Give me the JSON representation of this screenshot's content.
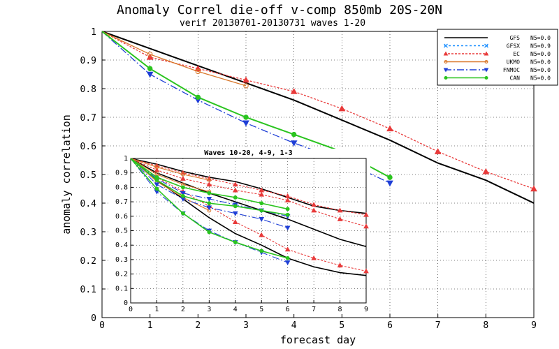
{
  "chart_data": [
    {
      "type": "line",
      "title": "Anomaly Correl die-off  v-comp 850mb 20S-20N",
      "subtitle": "verif 20130701-20130731 waves 1-20",
      "xlabel": "forecast day",
      "ylabel": "anomaly correlation",
      "xlim": [
        0,
        9
      ],
      "ylim": [
        0,
        1
      ],
      "x_ticks": [
        "0",
        "1",
        "2",
        "3",
        "4",
        "5",
        "6",
        "7",
        "8",
        "9"
      ],
      "y_ticks": [
        "0",
        "0.1",
        "0.2",
        "0.3",
        "0.4",
        "0.5",
        "0.6",
        "0.7",
        "0.8",
        "0.9",
        "1"
      ],
      "grid": true,
      "legend_position": "top-right",
      "series": [
        {
          "name": "GFS",
          "n_label": "N5=0.0",
          "color": "#000000",
          "dash": "",
          "marker": "none",
          "x": [
            0,
            1,
            2,
            3,
            4,
            5,
            6,
            7,
            8,
            9
          ],
          "y": [
            1,
            0.94,
            0.88,
            0.82,
            0.76,
            0.69,
            0.62,
            0.54,
            0.48,
            0.4
          ]
        },
        {
          "name": "GFSX",
          "n_label": "N5=0.9",
          "color": "#1e90ff",
          "dash": "3,3",
          "marker": "x",
          "x": [
            0
          ],
          "y": [
            1
          ]
        },
        {
          "name": "EC",
          "n_label": "N5=0.0",
          "color": "#e83a3a",
          "dash": "3,2",
          "marker": "triangle",
          "x": [
            0,
            1,
            2,
            3,
            4,
            5,
            6,
            7,
            8,
            9
          ],
          "y": [
            1,
            0.91,
            0.87,
            0.83,
            0.79,
            0.73,
            0.66,
            0.58,
            0.51,
            0.45
          ]
        },
        {
          "name": "UKMO",
          "n_label": "N5=0.0",
          "color": "#d9772a",
          "dash": "",
          "marker": "circle",
          "x": [
            0,
            1,
            2,
            3
          ],
          "y": [
            1,
            0.92,
            0.86,
            0.81
          ]
        },
        {
          "name": "FNMOC",
          "n_label": "N5=0.0",
          "color": "#1f3fd6",
          "dash": "10,3,2,3",
          "marker": "tri-down",
          "x": [
            0,
            1,
            2,
            3,
            4,
            5,
            6
          ],
          "y": [
            1,
            0.85,
            0.76,
            0.68,
            0.61,
            0.55,
            0.47
          ]
        },
        {
          "name": "CAN",
          "n_label": "N5=0.0",
          "color": "#2ac41f",
          "dash": "",
          "marker": "dot",
          "x": [
            0,
            1,
            2,
            3,
            4,
            5,
            6
          ],
          "y": [
            1,
            0.87,
            0.77,
            0.7,
            0.64,
            0.58,
            0.49
          ]
        }
      ]
    },
    {
      "type": "line",
      "title": "Waves 10-20, 4-9, 1-3",
      "xlim": [
        0,
        9
      ],
      "ylim": [
        0,
        1
      ],
      "x_ticks": [
        "0",
        "1",
        "2",
        "3",
        "4",
        "5",
        "6",
        "7",
        "8",
        "9"
      ],
      "y_ticks": [
        "0",
        "0.1",
        "0.2",
        "0.3",
        "0.4",
        "0.5",
        "0.6",
        "0.7",
        "0.8",
        "0.9",
        "1"
      ],
      "grid": true,
      "series": [
        {
          "name": "GFS waves 1-3",
          "color": "#000000",
          "dash": "",
          "marker": "none",
          "x": [
            0,
            1,
            2,
            3,
            4,
            5,
            6,
            7,
            8,
            9
          ],
          "y": [
            1,
            0.96,
            0.91,
            0.87,
            0.84,
            0.79,
            0.73,
            0.67,
            0.64,
            0.62
          ]
        },
        {
          "name": "GFS waves 4-9",
          "color": "#000000",
          "dash": "",
          "marker": "none",
          "x": [
            0,
            1,
            2,
            3,
            4,
            5,
            6,
            7,
            8,
            9
          ],
          "y": [
            1,
            0.9,
            0.83,
            0.76,
            0.7,
            0.64,
            0.58,
            0.51,
            0.44,
            0.39
          ]
        },
        {
          "name": "GFS waves 10-20",
          "color": "#000000",
          "dash": "",
          "marker": "none",
          "x": [
            0,
            1,
            2,
            3,
            4,
            5,
            6,
            7,
            8,
            9
          ],
          "y": [
            1,
            0.85,
            0.72,
            0.59,
            0.48,
            0.4,
            0.31,
            0.25,
            0.21,
            0.19
          ]
        },
        {
          "name": "EC waves 1-3",
          "color": "#e83a3a",
          "dash": "3,2",
          "marker": "triangle",
          "x": [
            0,
            1,
            2,
            3,
            4,
            5,
            6,
            7,
            8,
            9
          ],
          "y": [
            1,
            0.95,
            0.9,
            0.86,
            0.82,
            0.78,
            0.74,
            0.68,
            0.64,
            0.61
          ]
        },
        {
          "name": "EC waves 4-9",
          "color": "#e83a3a",
          "dash": "3,2",
          "marker": "triangle",
          "x": [
            0,
            1,
            2,
            3,
            4,
            5,
            6,
            7,
            8,
            9
          ],
          "y": [
            1,
            0.92,
            0.86,
            0.82,
            0.78,
            0.75,
            0.71,
            0.64,
            0.58,
            0.53
          ]
        },
        {
          "name": "EC waves 10-20",
          "color": "#e83a3a",
          "dash": "3,2",
          "marker": "triangle",
          "x": [
            0,
            1,
            2,
            3,
            4,
            5,
            6,
            7,
            8,
            9
          ],
          "y": [
            1,
            0.87,
            0.77,
            0.67,
            0.56,
            0.47,
            0.37,
            0.31,
            0.26,
            0.22
          ]
        },
        {
          "name": "UKMO waves 1-3",
          "color": "#d9772a",
          "dash": "",
          "marker": "circle",
          "x": [
            0,
            1,
            2,
            3
          ],
          "y": [
            1,
            0.94,
            0.89,
            0.85
          ]
        },
        {
          "name": "UKMO waves 4-9",
          "color": "#d9772a",
          "dash": "",
          "marker": "circle",
          "x": [
            0,
            1,
            2,
            3
          ],
          "y": [
            1,
            0.89,
            0.82,
            0.77
          ]
        },
        {
          "name": "UKMO waves 10-20",
          "color": "#d9772a",
          "dash": "",
          "marker": "circle",
          "x": [
            0,
            1,
            2,
            3
          ],
          "y": [
            1,
            0.84,
            0.73,
            0.64
          ]
        },
        {
          "name": "FNMOC waves 1-3",
          "color": "#1f3fd6",
          "dash": "10,3,2,3",
          "marker": "tri-down",
          "x": [
            0,
            1,
            2,
            3,
            4,
            5,
            6
          ],
          "y": [
            1,
            0.86,
            0.76,
            0.72,
            0.68,
            0.64,
            0.6
          ]
        },
        {
          "name": "FNMOC waves 4-9",
          "color": "#1f3fd6",
          "dash": "10,3,2,3",
          "marker": "tri-down",
          "x": [
            0,
            1,
            2,
            3,
            4,
            5,
            6
          ],
          "y": [
            1,
            0.82,
            0.72,
            0.66,
            0.62,
            0.58,
            0.52
          ]
        },
        {
          "name": "FNMOC waves 10-20",
          "color": "#1f3fd6",
          "dash": "10,3,2,3",
          "marker": "tri-down",
          "x": [
            0,
            1,
            2,
            3,
            4,
            5,
            6
          ],
          "y": [
            1,
            0.77,
            0.62,
            0.5,
            0.42,
            0.35,
            0.28
          ]
        },
        {
          "name": "CAN waves 1-3",
          "color": "#2ac41f",
          "dash": "",
          "marker": "dot",
          "x": [
            0,
            1,
            2,
            3,
            4,
            5,
            6
          ],
          "y": [
            1,
            0.87,
            0.8,
            0.76,
            0.73,
            0.69,
            0.65
          ]
        },
        {
          "name": "CAN waves 4-9",
          "color": "#2ac41f",
          "dash": "",
          "marker": "dot",
          "x": [
            0,
            1,
            2,
            3,
            4,
            5,
            6
          ],
          "y": [
            1,
            0.85,
            0.74,
            0.69,
            0.67,
            0.64,
            0.61
          ]
        },
        {
          "name": "CAN waves 10-20",
          "color": "#2ac41f",
          "dash": "",
          "marker": "dot",
          "x": [
            0,
            1,
            2,
            3,
            4,
            5,
            6
          ],
          "y": [
            1,
            0.79,
            0.62,
            0.49,
            0.42,
            0.36,
            0.31
          ]
        }
      ]
    }
  ]
}
